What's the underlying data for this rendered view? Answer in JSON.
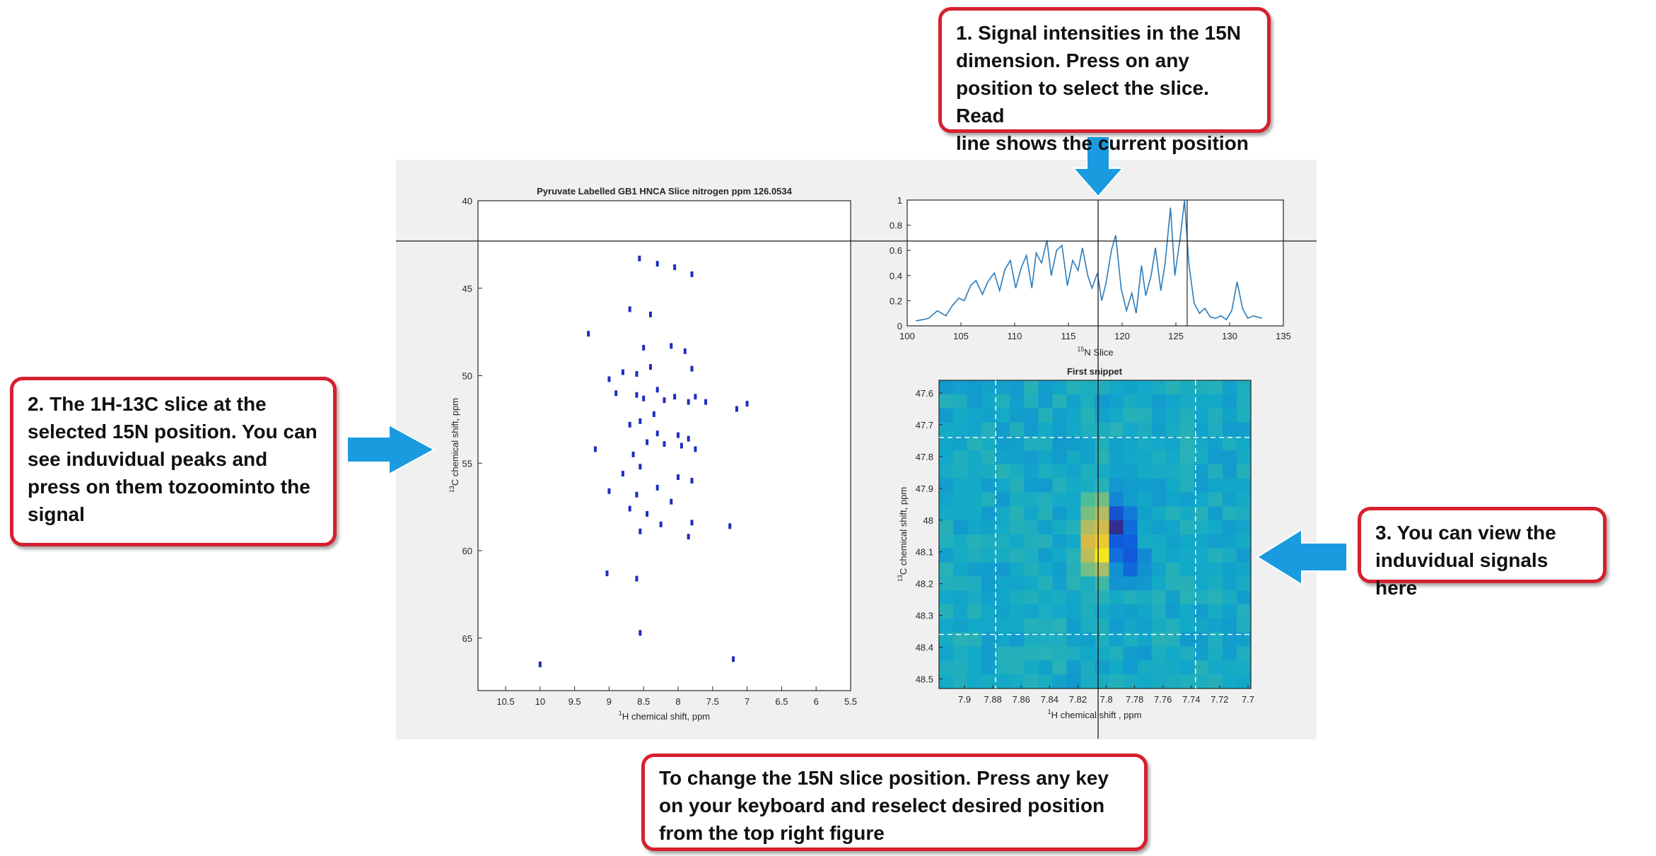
{
  "colors": {
    "callout_border": "#d6202e",
    "arrow": "#1a9be0",
    "figure_bg": "#f0f0f0",
    "line_series": "#2b7bba",
    "peaks": "#1f2dbf"
  },
  "callouts": {
    "top": "1. Signal intensities in the 15N\ndimension. Press on any\nposition to select the slice. Read\nline shows the current position",
    "left": "2. The 1H-13C slice at the\nselected 15N position. You can\nsee induvidual peaks and\npress on them tozoominto the\nsignal",
    "right": "3. You can view the\ninduvidual signals here",
    "bottom": "To change the 15N slice position. Press any key\non your keyboard and reselect desired position\nfrom the top right figure"
  },
  "arrows": {
    "top": "arrow-down-icon",
    "left": "arrow-right-icon",
    "right": "arrow-left-icon"
  },
  "left_plot": {
    "title": "Pyruvate Labelled GB1 HNCA  Slice nitrogen ppm 126.0534",
    "xlabel": "H chemical shift, ppm",
    "xlabel_sup": "1",
    "ylabel": "C chemical shift, ppm",
    "ylabel_sup": "13",
    "xticks": [
      "10.5",
      "10",
      "9.5",
      "9",
      "8.5",
      "8",
      "7.5",
      "7",
      "6.5",
      "6",
      "5.5"
    ],
    "yticks": [
      "40",
      "45",
      "50",
      "55",
      "60",
      "65"
    ]
  },
  "top_plot": {
    "xlabel": "N Slice",
    "xlabel_sup": "15",
    "xticks": [
      "100",
      "105",
      "110",
      "115",
      "120",
      "125",
      "130",
      "135"
    ],
    "yticks": [
      "0",
      "0.2",
      "0.4",
      "0.6",
      "0.8",
      "1"
    ]
  },
  "bottom_plot": {
    "title": "First snippet",
    "xlabel": "H chemical shift , ppm",
    "xlabel_sup": "1",
    "ylabel": "C chemical shift, ppm",
    "ylabel_sup": "13",
    "xticks": [
      "7.9",
      "7.88",
      "7.86",
      "7.84",
      "7.82",
      "7.8",
      "7.78",
      "7.76",
      "7.74",
      "7.72",
      "7.7"
    ],
    "yticks": [
      "47.6",
      "47.7",
      "47.8",
      "47.9",
      "48",
      "48.1",
      "48.2",
      "48.3",
      "48.4",
      "48.5"
    ]
  },
  "chart_data": [
    {
      "type": "scatter",
      "title": "Pyruvate Labelled GB1 HNCA  Slice nitrogen ppm 126.0534",
      "xlabel": "1H chemical shift, ppm",
      "ylabel": "13C chemical shift, ppm",
      "xlim": [
        10.9,
        5.5
      ],
      "ylim": [
        40,
        68
      ],
      "x_reversed": true,
      "y_reversed": true,
      "peaks": [
        [
          8.56,
          43.3
        ],
        [
          8.3,
          43.6
        ],
        [
          8.05,
          43.8
        ],
        [
          7.8,
          44.2
        ],
        [
          8.4,
          46.5
        ],
        [
          8.7,
          46.2
        ],
        [
          9.3,
          47.6
        ],
        [
          8.5,
          48.4
        ],
        [
          8.1,
          48.3
        ],
        [
          7.9,
          48.6
        ],
        [
          8.4,
          49.5
        ],
        [
          8.6,
          49.9
        ],
        [
          8.8,
          49.8
        ],
        [
          9.0,
          50.2
        ],
        [
          7.8,
          49.6
        ],
        [
          8.3,
          50.8
        ],
        [
          8.9,
          51.0
        ],
        [
          8.6,
          51.1
        ],
        [
          8.5,
          51.3
        ],
        [
          8.2,
          51.4
        ],
        [
          8.05,
          51.2
        ],
        [
          7.85,
          51.5
        ],
        [
          7.75,
          51.2
        ],
        [
          7.6,
          51.5
        ],
        [
          7.15,
          51.9
        ],
        [
          7.0,
          51.6
        ],
        [
          8.35,
          52.2
        ],
        [
          8.55,
          52.6
        ],
        [
          8.7,
          52.8
        ],
        [
          8.3,
          53.3
        ],
        [
          8.0,
          53.4
        ],
        [
          7.85,
          53.6
        ],
        [
          8.45,
          53.8
        ],
        [
          8.2,
          53.9
        ],
        [
          7.95,
          54.0
        ],
        [
          7.75,
          54.2
        ],
        [
          8.65,
          54.5
        ],
        [
          9.2,
          54.2
        ],
        [
          8.55,
          55.2
        ],
        [
          8.8,
          55.6
        ],
        [
          8.0,
          55.8
        ],
        [
          7.8,
          56.0
        ],
        [
          8.3,
          56.4
        ],
        [
          9.0,
          56.6
        ],
        [
          8.6,
          56.8
        ],
        [
          8.1,
          57.2
        ],
        [
          8.7,
          57.6
        ],
        [
          8.45,
          57.9
        ],
        [
          7.8,
          58.4
        ],
        [
          8.25,
          58.5
        ],
        [
          7.25,
          58.6
        ],
        [
          8.55,
          58.9
        ],
        [
          7.85,
          59.2
        ],
        [
          9.03,
          61.3
        ],
        [
          8.6,
          61.6
        ],
        [
          8.55,
          64.7
        ],
        [
          7.2,
          66.2
        ],
        [
          10.0,
          66.5
        ]
      ]
    },
    {
      "type": "line",
      "xlabel": "15N Slice",
      "xlim": [
        100,
        135
      ],
      "ylim": [
        0,
        1
      ],
      "series": [
        {
          "x": [
            100.8,
            101.5,
            102.0,
            102.8,
            103.6,
            104.2,
            104.8,
            105.3,
            105.9,
            106.4,
            107.0,
            107.5,
            108.1,
            108.6,
            109.1,
            109.6,
            110.1,
            110.6,
            111.1,
            111.6,
            112.0,
            112.5,
            113.0,
            113.4,
            113.9,
            114.4,
            114.9,
            115.4,
            115.9,
            116.3,
            116.8,
            117.2,
            117.7,
            118.1,
            118.5,
            119.0,
            119.4,
            119.9,
            120.4,
            120.9,
            121.3,
            121.8,
            122.2,
            122.7,
            123.1,
            123.6,
            124.0,
            124.5,
            124.9,
            125.4,
            125.8,
            126.2,
            126.7,
            127.2,
            127.7,
            128.2,
            128.7,
            129.2,
            129.7,
            130.2,
            130.7,
            131.2,
            131.7,
            132.2,
            133.0
          ],
          "y": [
            0.04,
            0.05,
            0.06,
            0.12,
            0.08,
            0.16,
            0.22,
            0.2,
            0.32,
            0.36,
            0.25,
            0.35,
            0.42,
            0.28,
            0.45,
            0.52,
            0.3,
            0.46,
            0.56,
            0.3,
            0.58,
            0.5,
            0.68,
            0.4,
            0.6,
            0.64,
            0.32,
            0.52,
            0.44,
            0.62,
            0.4,
            0.3,
            0.42,
            0.2,
            0.34,
            0.6,
            0.72,
            0.3,
            0.12,
            0.26,
            0.1,
            0.48,
            0.24,
            0.4,
            0.62,
            0.28,
            0.5,
            0.94,
            0.4,
            0.7,
            1.0,
            0.5,
            0.18,
            0.1,
            0.14,
            0.07,
            0.06,
            0.08,
            0.05,
            0.12,
            0.35,
            0.14,
            0.06,
            0.08,
            0.06
          ]
        }
      ],
      "markers": {
        "vertical_lines": [
          118.2,
          126.05
        ],
        "horizontal_line": 0.68
      }
    },
    {
      "type": "heatmap",
      "title": "First snippet",
      "xlabel": "1H chemical shift , ppm",
      "ylabel": "13C chemical shift, ppm",
      "xlim": [
        7.918,
        7.698
      ],
      "ylim": [
        47.56,
        48.53
      ],
      "hot_spots": [
        {
          "x": 7.806,
          "y": 48.0,
          "level": 0.85
        },
        {
          "x": 7.806,
          "y": 48.1,
          "level": 1.0
        },
        {
          "x": 7.793,
          "y": 48.02,
          "level": -1.0
        },
        {
          "x": 7.785,
          "y": 48.12,
          "level": -0.55
        }
      ],
      "dashed_box": {
        "x": [
          7.878,
          7.737
        ],
        "y": [
          47.74,
          48.36
        ]
      },
      "crosshair_x": 7.801
    }
  ]
}
